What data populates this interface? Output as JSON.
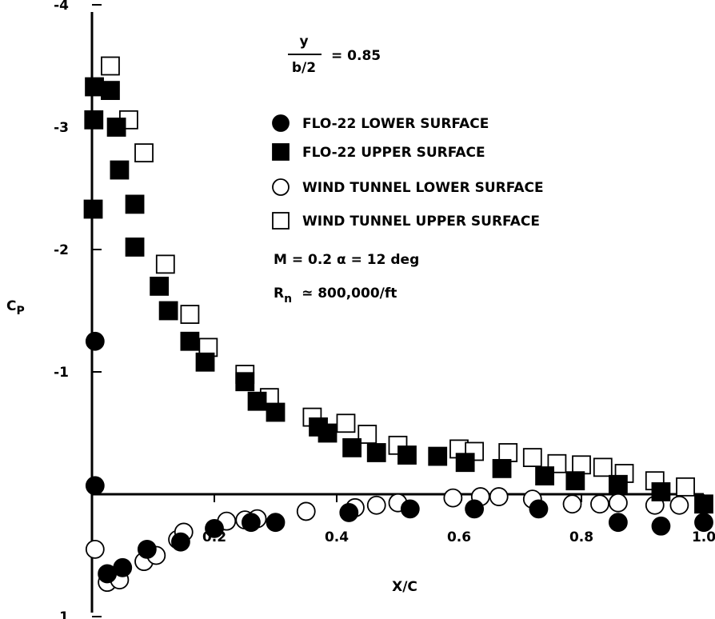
{
  "chart_data": {
    "type": "scatter",
    "xlabel": "X/C",
    "ylabel": "C",
    "ylabel_sub": "P",
    "xlim": [
      0,
      1.0
    ],
    "ylim": [
      1,
      -4
    ],
    "y_inverted": true,
    "x_tick_labels": [
      "0.2",
      "0.4",
      "0.6",
      "0.8",
      "1.0"
    ],
    "x_ticks": [
      0.2,
      0.4,
      0.6,
      0.8,
      1.0
    ],
    "y_tick_labels": [
      "-4",
      "-3",
      "-2",
      "-1",
      "1"
    ],
    "y_ticks": [
      -4,
      -3,
      -2,
      -1,
      1
    ],
    "annotations": {
      "fraction_numerator": "y",
      "fraction_denominator": "b/2",
      "fraction_value": "= 0.85",
      "mach_alpha": "M  =  0.2  α  =  12  deg",
      "reynolds_main": "R",
      "reynolds_sub": "n",
      "reynolds_value": "≃  800,000/ft"
    },
    "grid": false,
    "legend_position": "top-right",
    "series": [
      {
        "name": "FLO-22 LOWER SURFACE",
        "marker": "circle-filled",
        "points": [
          [
            0.005,
            -1.25
          ],
          [
            0.005,
            -0.07
          ],
          [
            0.025,
            0.65
          ],
          [
            0.05,
            0.6
          ],
          [
            0.09,
            0.45
          ],
          [
            0.145,
            0.39
          ],
          [
            0.2,
            0.28
          ],
          [
            0.26,
            0.23
          ],
          [
            0.3,
            0.23
          ],
          [
            0.42,
            0.15
          ],
          [
            0.52,
            0.12
          ],
          [
            0.625,
            0.12
          ],
          [
            0.73,
            0.12
          ],
          [
            0.86,
            0.23
          ],
          [
            0.93,
            0.26
          ],
          [
            1.0,
            0.23
          ]
        ]
      },
      {
        "name": "FLO-22 UPPER SURFACE",
        "marker": "square-filled",
        "points": [
          [
            0.002,
            -2.33
          ],
          [
            0.003,
            -3.06
          ],
          [
            0.004,
            -3.33
          ],
          [
            0.03,
            -3.3
          ],
          [
            0.04,
            -3.0
          ],
          [
            0.045,
            -2.65
          ],
          [
            0.07,
            -2.37
          ],
          [
            0.07,
            -2.02
          ],
          [
            0.11,
            -1.7
          ],
          [
            0.125,
            -1.5
          ],
          [
            0.16,
            -1.25
          ],
          [
            0.185,
            -1.08
          ],
          [
            0.25,
            -0.92
          ],
          [
            0.27,
            -0.76
          ],
          [
            0.3,
            -0.67
          ],
          [
            0.37,
            -0.55
          ],
          [
            0.385,
            -0.5
          ],
          [
            0.425,
            -0.38
          ],
          [
            0.465,
            -0.34
          ],
          [
            0.515,
            -0.32
          ],
          [
            0.565,
            -0.31
          ],
          [
            0.61,
            -0.26
          ],
          [
            0.67,
            -0.21
          ],
          [
            0.74,
            -0.15
          ],
          [
            0.79,
            -0.11
          ],
          [
            0.86,
            -0.08
          ],
          [
            0.93,
            -0.02
          ],
          [
            1.0,
            0.08
          ]
        ]
      },
      {
        "name": "WIND TUNNEL LOWER SURFACE",
        "marker": "circle-open",
        "points": [
          [
            0.005,
            0.45
          ],
          [
            0.025,
            0.72
          ],
          [
            0.045,
            0.7
          ],
          [
            0.085,
            0.55
          ],
          [
            0.105,
            0.5
          ],
          [
            0.14,
            0.37
          ],
          [
            0.15,
            0.31
          ],
          [
            0.22,
            0.22
          ],
          [
            0.25,
            0.21
          ],
          [
            0.27,
            0.2
          ],
          [
            0.35,
            0.14
          ],
          [
            0.43,
            0.11
          ],
          [
            0.465,
            0.09
          ],
          [
            0.5,
            0.07
          ],
          [
            0.59,
            0.03
          ],
          [
            0.635,
            0.02
          ],
          [
            0.665,
            0.02
          ],
          [
            0.72,
            0.04
          ],
          [
            0.785,
            0.08
          ],
          [
            0.83,
            0.08
          ],
          [
            0.86,
            0.07
          ],
          [
            0.92,
            0.09
          ],
          [
            0.96,
            0.09
          ]
        ]
      },
      {
        "name": "WIND TUNNEL UPPER SURFACE",
        "marker": "square-open",
        "points": [
          [
            0.03,
            -3.5
          ],
          [
            0.06,
            -3.06
          ],
          [
            0.085,
            -2.79
          ],
          [
            0.12,
            -1.88
          ],
          [
            0.16,
            -1.47
          ],
          [
            0.19,
            -1.2
          ],
          [
            0.25,
            -0.98
          ],
          [
            0.29,
            -0.79
          ],
          [
            0.36,
            -0.63
          ],
          [
            0.415,
            -0.58
          ],
          [
            0.45,
            -0.49
          ],
          [
            0.5,
            -0.4
          ],
          [
            0.6,
            -0.37
          ],
          [
            0.625,
            -0.35
          ],
          [
            0.68,
            -0.34
          ],
          [
            0.72,
            -0.3
          ],
          [
            0.76,
            -0.25
          ],
          [
            0.8,
            -0.24
          ],
          [
            0.835,
            -0.22
          ],
          [
            0.87,
            -0.17
          ],
          [
            0.92,
            -0.11
          ],
          [
            0.97,
            -0.06
          ]
        ]
      }
    ]
  }
}
